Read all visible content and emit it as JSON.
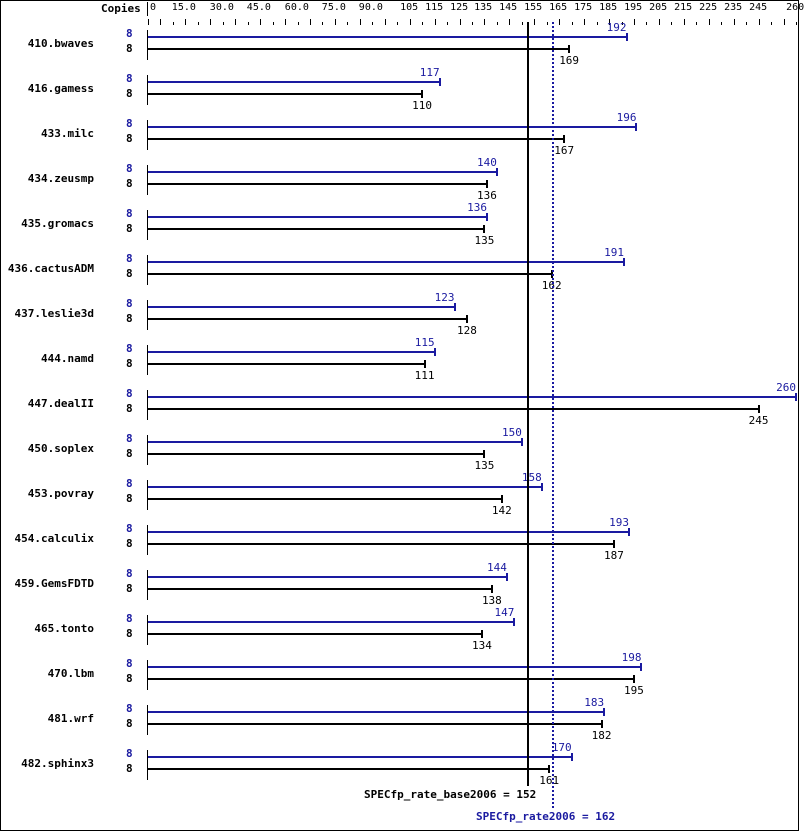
{
  "chart_data": {
    "type": "bar",
    "orientation": "horizontal",
    "title": "",
    "xlabel": "Copies",
    "ylabel": "",
    "xlim": [
      0,
      260
    ],
    "x_tick_labels": [
      "0",
      "15.0",
      "30.0",
      "45.0",
      "60.0",
      "75.0",
      "90.0",
      "105",
      "115",
      "125",
      "135",
      "145",
      "155",
      "165",
      "175",
      "185",
      "195",
      "205",
      "215",
      "225",
      "235",
      "245",
      "260"
    ],
    "categories": [
      "410.bwaves",
      "416.gamess",
      "433.milc",
      "434.zeusmp",
      "435.gromacs",
      "436.cactusADM",
      "437.leslie3d",
      "444.namd",
      "447.dealII",
      "450.soplex",
      "453.povray",
      "454.calculix",
      "459.GemsFDTD",
      "465.tonto",
      "470.lbm",
      "481.wrf",
      "482.sphinx3"
    ],
    "series": [
      {
        "name": "SPECfp_rate2006 (peak)",
        "color": "#1a1aa0",
        "copies": [
          8,
          8,
          8,
          8,
          8,
          8,
          8,
          8,
          8,
          8,
          8,
          8,
          8,
          8,
          8,
          8,
          8
        ],
        "values": [
          192,
          117,
          196,
          140,
          136,
          191,
          123,
          115,
          260,
          150,
          158,
          193,
          144,
          147,
          198,
          183,
          170
        ]
      },
      {
        "name": "SPECfp_rate_base2006 (base)",
        "color": "#000000",
        "copies": [
          8,
          8,
          8,
          8,
          8,
          8,
          8,
          8,
          8,
          8,
          8,
          8,
          8,
          8,
          8,
          8,
          8
        ],
        "values": [
          169,
          110,
          167,
          136,
          135,
          162,
          128,
          111,
          245,
          135,
          142,
          187,
          138,
          134,
          195,
          182,
          161
        ]
      }
    ],
    "reference_lines": [
      {
        "label": "SPECfp_rate_base2006 = 152",
        "value": 152,
        "style": "solid",
        "color": "#000000"
      },
      {
        "label": "SPECfp_rate2006 = 162",
        "value": 162,
        "style": "dotted",
        "color": "#1a1aa0"
      }
    ],
    "grid": false,
    "legend": "none"
  },
  "header": {
    "copies_label": "Copies"
  },
  "footer": {
    "base_label": "SPECfp_rate_base2006 = 152",
    "peak_label": "SPECfp_rate2006 = 162"
  }
}
